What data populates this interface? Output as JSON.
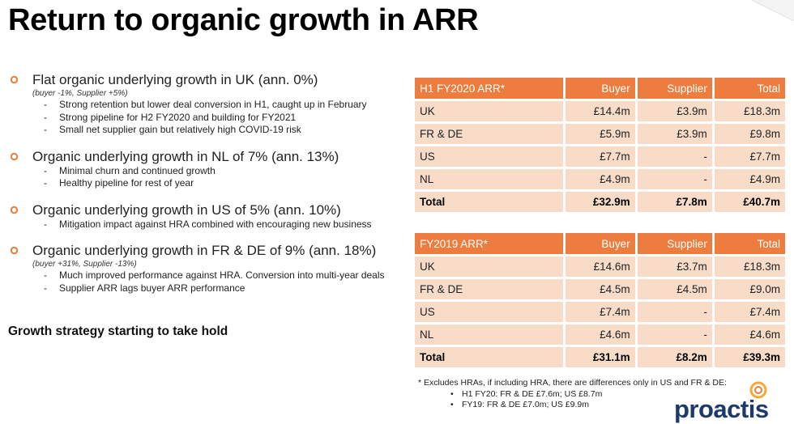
{
  "title": "Return to organic growth in ARR",
  "colors": {
    "accent": "#ec7d3e",
    "table_cell": "#f8dcc8",
    "brand_navy": "#1c3a6b"
  },
  "points": [
    {
      "heading": "Flat organic underlying growth in UK (ann. 0%)",
      "note": "(buyer -1%, Supplier +5%)",
      "subs": [
        "Strong retention but lower deal conversion in H1, caught up in February",
        "Strong pipeline for H2 FY2020 and building for FY2021",
        "Small net supplier gain but relatively high COVID-19 risk"
      ]
    },
    {
      "heading": "Organic underlying growth in NL of 7% (ann. 13%)",
      "note": "",
      "subs": [
        "Minimal churn and continued growth",
        "Healthy pipeline for rest of year"
      ]
    },
    {
      "heading": "Organic underlying growth in US of 5% (ann. 10%)",
      "note": "",
      "subs": [
        "Mitigation impact against HRA combined with encouraging new business"
      ]
    },
    {
      "heading": "Organic underlying growth in FR & DE of 9% (ann. 18%)",
      "note": "(buyer +31%, Supplier -13%)",
      "subs": [
        "Much improved performance against HRA. Conversion into multi-year deals",
        "Supplier ARR lags buyer ARR performance"
      ]
    }
  ],
  "strategy": "Growth strategy starting to take hold",
  "tables": [
    {
      "header": [
        "H1 FY2020 ARR*",
        "Buyer",
        "Supplier",
        "Total"
      ],
      "rows": [
        [
          "UK",
          "£14.4m",
          "£3.9m",
          "£18.3m"
        ],
        [
          "FR & DE",
          "£5.9m",
          "£3.9m",
          "£9.8m"
        ],
        [
          "US",
          "£7.7m",
          "-",
          "£7.7m"
        ],
        [
          "NL",
          "£4.9m",
          "-",
          "£4.9m"
        ]
      ],
      "total": [
        "Total",
        "£32.9m",
        "£7.8m",
        "£40.7m"
      ]
    },
    {
      "header": [
        "FY2019 ARR*",
        "Buyer",
        "Supplier",
        "Total"
      ],
      "rows": [
        [
          "UK",
          "£14.6m",
          "£3.7m",
          "£18.3m"
        ],
        [
          "FR & DE",
          "£4.5m",
          "£4.5m",
          "£9.0m"
        ],
        [
          "US",
          "£7.4m",
          "-",
          "£7.4m"
        ],
        [
          "NL",
          "£4.6m",
          "-",
          "£4.6m"
        ]
      ],
      "total": [
        "Total",
        "£31.1m",
        "£8.2m",
        "£39.3m"
      ]
    }
  ],
  "footnote": {
    "main": "* Excludes HRAs, if including HRA, there are differences only in US and FR & DE:",
    "items": [
      "H1 FY20: FR & DE £7.6m; US £8.7m",
      "FY19: FR & DE £7.0m; US £9.9m"
    ]
  },
  "logo_text": "proactis"
}
